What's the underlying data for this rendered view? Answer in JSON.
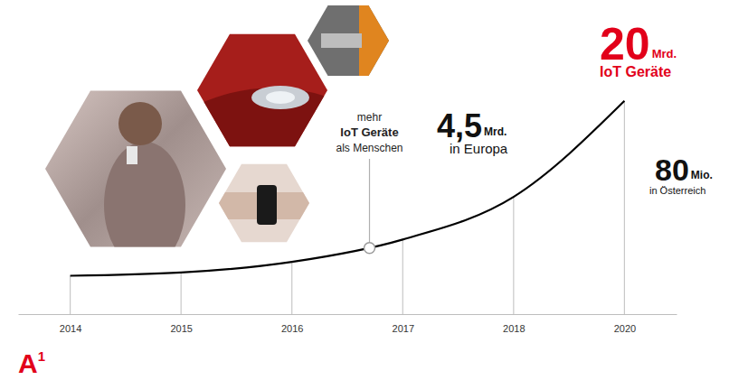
{
  "chart_data": {
    "type": "line",
    "categories": [
      "2014",
      "2015",
      "2016",
      "2017",
      "2018",
      "2020"
    ],
    "values": [
      3.6,
      3.9,
      4.9,
      7.0,
      11.0,
      20
    ],
    "color": "#000000",
    "ylim": [
      0,
      21
    ],
    "tick_labels": "x",
    "annotations": [
      {
        "value": 20,
        "unit": "Mrd.",
        "text": "IoT Geräte",
        "color": "#e2001a"
      },
      {
        "value": 4.5,
        "label": "4,5",
        "unit": "Mrd.",
        "text": "in Europa",
        "color": "#111111"
      },
      {
        "value": 80,
        "unit": "Mio.",
        "text": "in Österreich",
        "color": "#111111"
      }
    ],
    "note": [
      "mehr",
      "IoT Geräte",
      "als Menschen"
    ],
    "logo": "A1"
  }
}
